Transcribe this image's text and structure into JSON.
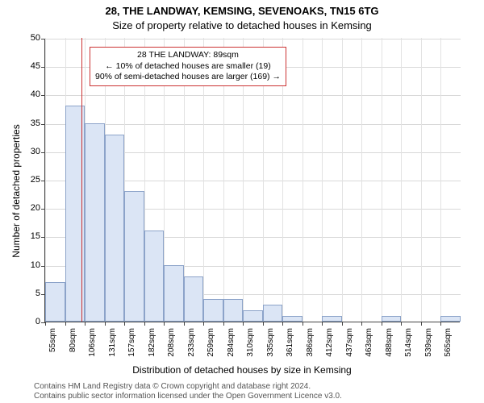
{
  "titles": {
    "main": "28, THE LANDWAY, KEMSING, SEVENOAKS, TN15 6TG",
    "sub": "Size of property relative to detached houses in Kemsing"
  },
  "axes": {
    "ylabel": "Number of detached properties",
    "xlabel": "Distribution of detached houses by size in Kemsing",
    "ylim": [
      0,
      50
    ],
    "ytick_step": 5,
    "xtick_labels": [
      "55sqm",
      "80sqm",
      "106sqm",
      "131sqm",
      "157sqm",
      "182sqm",
      "208sqm",
      "233sqm",
      "259sqm",
      "284sqm",
      "310sqm",
      "335sqm",
      "361sqm",
      "386sqm",
      "412sqm",
      "437sqm",
      "463sqm",
      "488sqm",
      "514sqm",
      "539sqm",
      "565sqm"
    ]
  },
  "chart": {
    "type": "histogram",
    "bar_fill": "#dbe5f5",
    "bar_stroke": "#8ca3c9",
    "background_color": "#ffffff",
    "grid_color": "#d8d8d8",
    "marker_color": "#cc3333",
    "marker_x": 89,
    "x_range": [
      42,
      578
    ],
    "values": [
      7,
      38,
      35,
      33,
      23,
      16,
      10,
      8,
      4,
      4,
      2,
      3,
      1,
      0,
      1,
      0,
      0,
      1,
      0,
      0,
      1
    ]
  },
  "annotation": {
    "line1": "28 THE LANDWAY: 89sqm",
    "line2": "← 10% of detached houses are smaller (19)",
    "line3": "90% of semi-detached houses are larger (169) →"
  },
  "footer": {
    "line1": "Contains HM Land Registry data © Crown copyright and database right 2024.",
    "line2": "Contains public sector information licensed under the Open Government Licence v3.0."
  }
}
